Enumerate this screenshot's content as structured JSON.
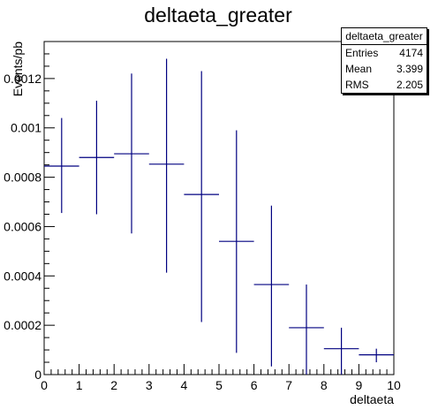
{
  "chart_data": {
    "type": "histogram",
    "title": "deltaeta_greater",
    "xlabel": "deltaeta",
    "ylabel": "Events/pb",
    "xlim": [
      0,
      10
    ],
    "ylim": [
      0,
      0.00135
    ],
    "x_ticks": [
      0,
      1,
      2,
      3,
      4,
      5,
      6,
      7,
      8,
      9,
      10
    ],
    "y_ticks": [
      {
        "value": 0,
        "label": "0"
      },
      {
        "value": 0.0002,
        "label": "0.0002"
      },
      {
        "value": 0.0004,
        "label": "0.0004"
      },
      {
        "value": 0.0006,
        "label": "0.0006"
      },
      {
        "value": 0.0008,
        "label": "0.0008"
      },
      {
        "value": 0.001,
        "label": "0.001"
      },
      {
        "value": 0.0012,
        "label": "0.0012"
      }
    ],
    "bins": [
      {
        "x_low": 0,
        "x_high": 1,
        "value": 0.000845,
        "err_low": 0.000655,
        "err_high": 0.00104
      },
      {
        "x_low": 1,
        "x_high": 2,
        "value": 0.00088,
        "err_low": 0.00065,
        "err_high": 0.00111
      },
      {
        "x_low": 2,
        "x_high": 3,
        "value": 0.000895,
        "err_low": 0.000572,
        "err_high": 0.00122
      },
      {
        "x_low": 3,
        "x_high": 4,
        "value": 0.000853,
        "err_low": 0.000413,
        "err_high": 0.00128
      },
      {
        "x_low": 4,
        "x_high": 5,
        "value": 0.00073,
        "err_low": 0.000213,
        "err_high": 0.00123
      },
      {
        "x_low": 5,
        "x_high": 6,
        "value": 0.00054,
        "err_low": 8.8e-05,
        "err_high": 0.00099
      },
      {
        "x_low": 6,
        "x_high": 7,
        "value": 0.000365,
        "err_low": 3.3e-05,
        "err_high": 0.000685
      },
      {
        "x_low": 7,
        "x_high": 8,
        "value": 0.00019,
        "err_low": 0.0,
        "err_high": 0.000365
      },
      {
        "x_low": 8,
        "x_high": 9,
        "value": 0.000105,
        "err_low": 0.0,
        "err_high": 0.00019
      },
      {
        "x_low": 9,
        "x_high": 10,
        "value": 8e-05,
        "err_low": 5e-05,
        "err_high": 0.000105
      }
    ],
    "line_color": "#000080",
    "grid": false,
    "stats_box": {
      "title": "deltaeta_greater",
      "rows": [
        {
          "label": "Entries",
          "value": "4174"
        },
        {
          "label": "Mean",
          "value": "3.399"
        },
        {
          "label": "RMS",
          "value": "2.205"
        }
      ]
    }
  }
}
